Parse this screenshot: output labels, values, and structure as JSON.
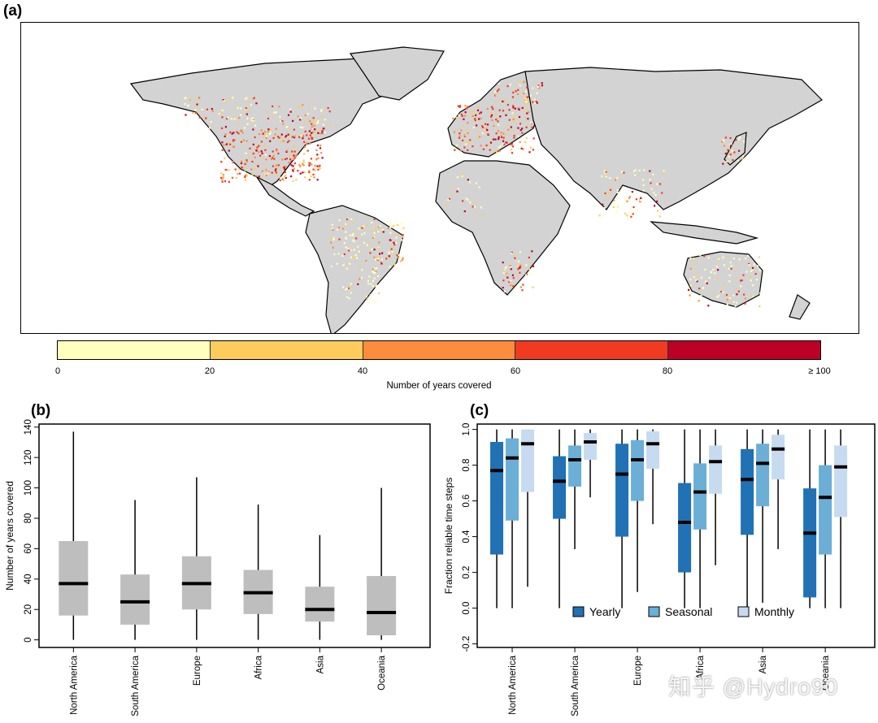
{
  "panels": {
    "a": "(a)",
    "b": "(b)",
    "c": "(c)"
  },
  "map": {
    "colorbar_title": "Number of years covered",
    "colorbar_ticks": [
      "0",
      "20",
      "40",
      "60",
      "80",
      "≥ 100"
    ],
    "colorbar_colors": [
      "#ffffbe",
      "#fecc5c",
      "#fd8d3c",
      "#f03b20",
      "#bd0026"
    ],
    "land_color": "#d3d3d3"
  },
  "watermark": "知乎 @Hydro90",
  "chart_data": [
    {
      "type": "box",
      "ylabel": "Number of years covered",
      "ylim": [
        -5,
        142
      ],
      "yticks": [
        0,
        20,
        40,
        60,
        80,
        100,
        120,
        140
      ],
      "categories": [
        "North America",
        "South America",
        "Europe",
        "Africa",
        "Asia",
        "Oceania"
      ],
      "boxes": [
        {
          "min": 0,
          "q1": 16,
          "median": 37,
          "q3": 65,
          "max": 137
        },
        {
          "min": 0,
          "q1": 10,
          "median": 25,
          "q3": 43,
          "max": 92
        },
        {
          "min": 0,
          "q1": 20,
          "median": 37,
          "q3": 55,
          "max": 107
        },
        {
          "min": 0,
          "q1": 17,
          "median": 31,
          "q3": 46,
          "max": 89
        },
        {
          "min": 0,
          "q1": 12,
          "median": 20,
          "q3": 35,
          "max": 69
        },
        {
          "min": 0,
          "q1": 3,
          "median": 18,
          "q3": 42,
          "max": 100
        }
      ],
      "color": "#bebebe"
    },
    {
      "type": "box",
      "ylabel": "Fraction reliable time steps",
      "ylim": [
        -0.22,
        1.03
      ],
      "yticks": [
        "-0.2",
        "0.0",
        "0.2",
        "0.4",
        "0.6",
        "0.8",
        "1.0"
      ],
      "categories": [
        "North America",
        "South America",
        "Europe",
        "Africa",
        "Asia",
        "Oceania"
      ],
      "legend_position": "bottom-center",
      "series": [
        {
          "name": "Yearly",
          "color": "#2171b5",
          "boxes": [
            {
              "min": 0,
              "q1": 0.3,
              "median": 0.77,
              "q3": 0.93,
              "max": 1.0
            },
            {
              "min": 0,
              "q1": 0.5,
              "median": 0.71,
              "q3": 0.85,
              "max": 1.0
            },
            {
              "min": 0,
              "q1": 0.4,
              "median": 0.75,
              "q3": 0.92,
              "max": 1.0
            },
            {
              "min": 0,
              "q1": 0.2,
              "median": 0.48,
              "q3": 0.7,
              "max": 1.0
            },
            {
              "min": 0,
              "q1": 0.41,
              "median": 0.72,
              "q3": 0.89,
              "max": 1.0
            },
            {
              "min": 0,
              "q1": 0.06,
              "median": 0.42,
              "q3": 0.67,
              "max": 1.0
            }
          ]
        },
        {
          "name": "Seasonal",
          "color": "#6baed6",
          "boxes": [
            {
              "min": 0,
              "q1": 0.49,
              "median": 0.84,
              "q3": 0.95,
              "max": 1.0
            },
            {
              "min": 0.33,
              "q1": 0.68,
              "median": 0.83,
              "q3": 0.91,
              "max": 1.0
            },
            {
              "min": 0.09,
              "q1": 0.6,
              "median": 0.83,
              "q3": 0.94,
              "max": 1.0
            },
            {
              "min": 0,
              "q1": 0.44,
              "median": 0.65,
              "q3": 0.81,
              "max": 1.0
            },
            {
              "min": 0.03,
              "q1": 0.57,
              "median": 0.81,
              "q3": 0.92,
              "max": 1.0
            },
            {
              "min": 0,
              "q1": 0.3,
              "median": 0.62,
              "q3": 0.8,
              "max": 1.0
            }
          ]
        },
        {
          "name": "Monthly",
          "color": "#c6dbef",
          "boxes": [
            {
              "min": 0.12,
              "q1": 0.65,
              "median": 0.92,
              "q3": 1.0,
              "max": 1.0
            },
            {
              "min": 0.62,
              "q1": 0.83,
              "median": 0.93,
              "q3": 0.98,
              "max": 1.0
            },
            {
              "min": 0.47,
              "q1": 0.78,
              "median": 0.92,
              "q3": 0.99,
              "max": 1.0
            },
            {
              "min": 0.24,
              "q1": 0.64,
              "median": 0.82,
              "q3": 0.91,
              "max": 1.0
            },
            {
              "min": 0.33,
              "q1": 0.72,
              "median": 0.89,
              "q3": 0.97,
              "max": 1.0
            },
            {
              "min": 0,
              "q1": 0.51,
              "median": 0.79,
              "q3": 0.91,
              "max": 1.0
            }
          ]
        }
      ]
    }
  ]
}
